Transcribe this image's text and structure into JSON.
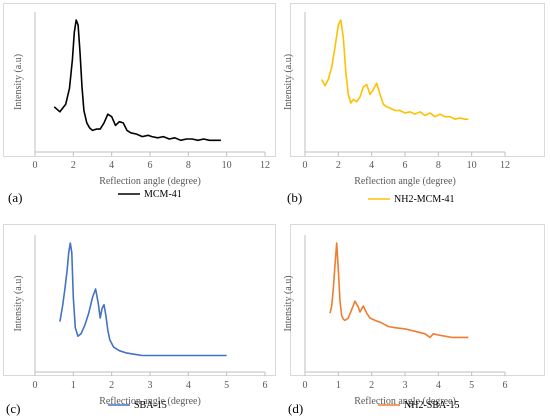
{
  "chart_data": [
    {
      "type": "line",
      "panel_label": "(a)",
      "xlabel": "Reflection angle (degree)",
      "ylabel": "Intensity (a.u)",
      "xlim": [
        0,
        12
      ],
      "xticks": [
        "0",
        "2",
        "4",
        "6",
        "8",
        "10",
        "12"
      ],
      "ylim": [
        0,
        1
      ],
      "grid": false,
      "legend_position": "bottom",
      "color": "#000000",
      "series": [
        {
          "name": "MCM-41",
          "x": [
            1.0,
            1.3,
            1.6,
            1.8,
            1.95,
            2.05,
            2.15,
            2.25,
            2.35,
            2.45,
            2.55,
            2.7,
            2.85,
            3.0,
            3.2,
            3.4,
            3.6,
            3.8,
            4.0,
            4.2,
            4.4,
            4.6,
            4.8,
            5.0,
            5.3,
            5.6,
            5.9,
            6.1,
            6.4,
            6.7,
            7.0,
            7.3,
            7.6,
            7.9,
            8.2,
            8.5,
            8.8,
            9.1,
            9.4,
            9.7
          ],
          "y": [
            0.3,
            0.26,
            0.32,
            0.45,
            0.68,
            0.9,
            1.0,
            0.96,
            0.74,
            0.46,
            0.27,
            0.17,
            0.13,
            0.11,
            0.12,
            0.12,
            0.17,
            0.24,
            0.22,
            0.15,
            0.18,
            0.17,
            0.11,
            0.09,
            0.08,
            0.06,
            0.07,
            0.06,
            0.05,
            0.06,
            0.04,
            0.05,
            0.03,
            0.04,
            0.04,
            0.03,
            0.04,
            0.03,
            0.03,
            0.03
          ]
        }
      ]
    },
    {
      "type": "line",
      "panel_label": "(b)",
      "xlabel": "Reflection angle (degree)",
      "ylabel": "Intensity (a.u)",
      "xlim": [
        0,
        12
      ],
      "xticks": [
        "0",
        "2",
        "4",
        "6",
        "8",
        "10",
        "12"
      ],
      "ylim": [
        0,
        1
      ],
      "grid": false,
      "legend_position": "bottom",
      "color": "#FFC000",
      "series": [
        {
          "name": "NH2-MCM-41",
          "x": [
            1.0,
            1.2,
            1.4,
            1.6,
            1.8,
            2.0,
            2.15,
            2.3,
            2.45,
            2.6,
            2.75,
            2.9,
            3.1,
            3.3,
            3.5,
            3.7,
            3.9,
            4.1,
            4.3,
            4.5,
            4.7,
            4.9,
            5.1,
            5.4,
            5.7,
            6.0,
            6.3,
            6.6,
            6.9,
            7.2,
            7.5,
            7.8,
            8.1,
            8.4,
            8.7,
            9.0,
            9.3,
            9.6,
            9.8
          ],
          "y": [
            0.52,
            0.47,
            0.52,
            0.62,
            0.78,
            0.96,
            1.0,
            0.86,
            0.58,
            0.4,
            0.33,
            0.36,
            0.34,
            0.38,
            0.46,
            0.48,
            0.4,
            0.44,
            0.49,
            0.4,
            0.32,
            0.3,
            0.29,
            0.27,
            0.27,
            0.25,
            0.26,
            0.24,
            0.26,
            0.23,
            0.25,
            0.22,
            0.24,
            0.22,
            0.22,
            0.2,
            0.21,
            0.2,
            0.2
          ]
        }
      ]
    },
    {
      "type": "line",
      "panel_label": "(c)",
      "xlabel": "Reflection angle (degree)",
      "ylabel": "Intensity (a.u)",
      "xlim": [
        0,
        6
      ],
      "xticks": [
        "0",
        "1",
        "2",
        "3",
        "4",
        "5",
        "6"
      ],
      "ylim": [
        0,
        1
      ],
      "grid": false,
      "legend_position": "bottom",
      "color": "#4472C4",
      "series": [
        {
          "name": "SBA-15",
          "x": [
            0.65,
            0.72,
            0.78,
            0.84,
            0.88,
            0.92,
            0.96,
            1.0,
            1.05,
            1.12,
            1.2,
            1.3,
            1.4,
            1.5,
            1.58,
            1.65,
            1.7,
            1.75,
            1.8,
            1.85,
            1.9,
            1.95,
            2.05,
            2.2,
            2.4,
            2.6,
            2.8,
            3.0,
            3.5,
            4.0,
            4.5,
            5.0
          ],
          "y": [
            0.35,
            0.48,
            0.62,
            0.78,
            0.92,
            1.0,
            0.92,
            0.55,
            0.3,
            0.23,
            0.25,
            0.32,
            0.42,
            0.55,
            0.62,
            0.5,
            0.38,
            0.46,
            0.49,
            0.4,
            0.28,
            0.2,
            0.14,
            0.11,
            0.09,
            0.08,
            0.07,
            0.07,
            0.07,
            0.07,
            0.07,
            0.07
          ]
        }
      ]
    },
    {
      "type": "line",
      "panel_label": "(d)",
      "xlabel": "Reflection angle (degree)",
      "ylabel": "Intensity (a.u)",
      "xlim": [
        0,
        6
      ],
      "xticks": [
        "0",
        "1",
        "2",
        "3",
        "4",
        "5",
        "6"
      ],
      "ylim": [
        0,
        1
      ],
      "grid": false,
      "legend_position": "bottom",
      "color": "#ED7D31",
      "series": [
        {
          "name": "NH2-SBA-15",
          "x": [
            0.75,
            0.8,
            0.85,
            0.9,
            0.95,
            1.0,
            1.05,
            1.1,
            1.15,
            1.2,
            1.3,
            1.4,
            1.5,
            1.6,
            1.65,
            1.75,
            1.85,
            1.95,
            2.1,
            2.3,
            2.5,
            2.7,
            3.0,
            3.3,
            3.6,
            3.75,
            3.85,
            4.0,
            4.2,
            4.4,
            4.6,
            4.9
          ],
          "y": [
            0.42,
            0.48,
            0.62,
            0.82,
            1.0,
            0.78,
            0.52,
            0.4,
            0.37,
            0.36,
            0.38,
            0.45,
            0.52,
            0.47,
            0.43,
            0.48,
            0.42,
            0.38,
            0.36,
            0.34,
            0.31,
            0.3,
            0.29,
            0.27,
            0.25,
            0.22,
            0.25,
            0.24,
            0.23,
            0.22,
            0.22,
            0.22
          ]
        }
      ]
    }
  ]
}
